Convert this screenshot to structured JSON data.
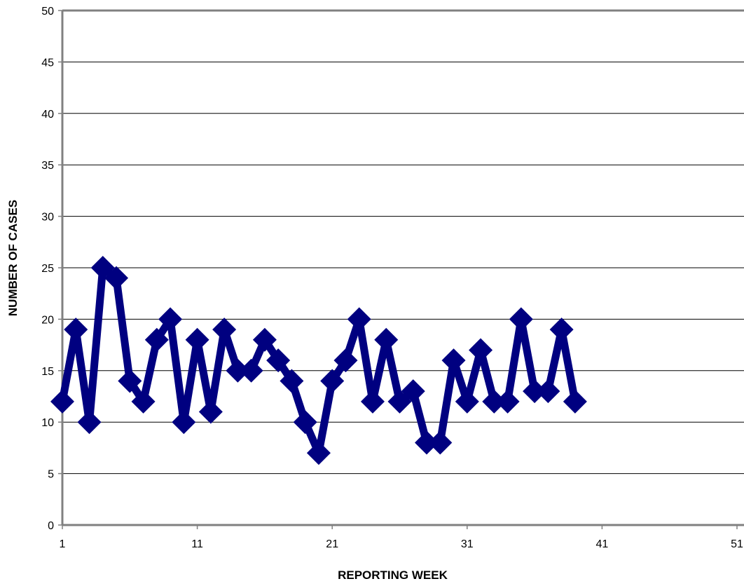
{
  "chart_data": {
    "type": "line",
    "title": "",
    "xlabel": "REPORTING WEEK",
    "ylabel": "NUMBER OF CASES",
    "xlim": [
      1,
      51
    ],
    "ylim": [
      0,
      50
    ],
    "x_ticks": [
      1,
      11,
      21,
      31,
      41,
      51
    ],
    "y_ticks": [
      0,
      5,
      10,
      15,
      20,
      25,
      30,
      35,
      40,
      45,
      50
    ],
    "grid": "horizontal",
    "legend": "none",
    "marker": "diamond",
    "series": [
      {
        "color": "#000080",
        "x": [
          1,
          2,
          3,
          4,
          5,
          6,
          7,
          8,
          9,
          10,
          11,
          12,
          13,
          14,
          15,
          16,
          17,
          18,
          19,
          20,
          21,
          22,
          23,
          24,
          25,
          26,
          27,
          28,
          29,
          30,
          31,
          32,
          33,
          34,
          35,
          36,
          37,
          38,
          39
        ],
        "values": [
          12,
          19,
          10,
          25,
          24,
          14,
          12,
          18,
          20,
          10,
          18,
          11,
          19,
          15,
          15,
          18,
          16,
          14,
          10,
          7,
          14,
          16,
          20,
          12,
          18,
          12,
          13,
          8,
          8,
          16,
          12,
          17,
          12,
          12,
          20,
          13,
          13,
          19,
          12
        ]
      }
    ]
  }
}
